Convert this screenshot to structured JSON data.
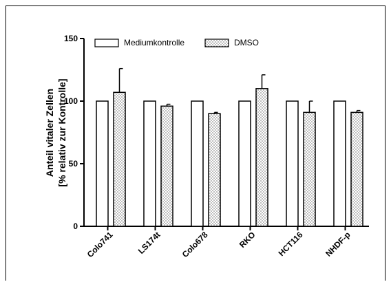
{
  "chart_data": {
    "type": "bar",
    "title": "",
    "xlabel": "",
    "ylabel_line1": "Anteil vitaler Zellen",
    "ylabel_line2": "[% relativ zur Kontrolle]",
    "ylim": [
      0,
      150
    ],
    "yticks": [
      0,
      50,
      100,
      150
    ],
    "grid": false,
    "legend_position": "top",
    "categories": [
      "Colo741",
      "LS174t",
      "Colo678",
      "RKO",
      "HCT116",
      "NHDF-p"
    ],
    "series": [
      {
        "name": "Mediumkontrolle",
        "pattern": "blank",
        "values": [
          100,
          100,
          100,
          100,
          100,
          100
        ],
        "errors": [
          0,
          0,
          0,
          0,
          0,
          0
        ]
      },
      {
        "name": "DMSO",
        "pattern": "dotted",
        "values": [
          107,
          96,
          90,
          110,
          91,
          91
        ],
        "errors": [
          19,
          1.5,
          1,
          11,
          9,
          1.5
        ]
      }
    ],
    "colors": {
      "axis": "#000000",
      "bar_fill": "#ffffff",
      "dot": "#000000"
    }
  }
}
